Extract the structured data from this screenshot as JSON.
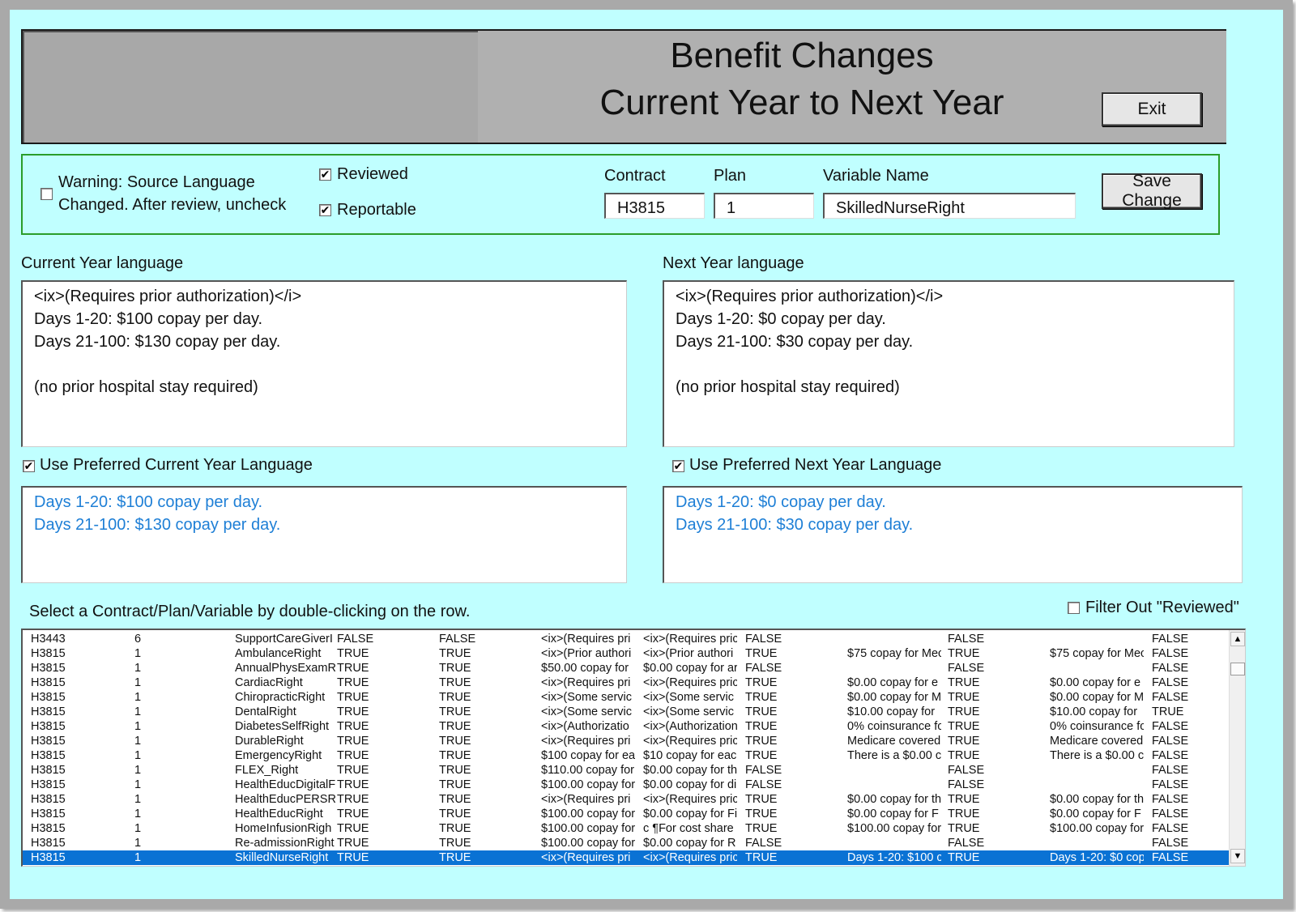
{
  "header": {
    "title_line1": "Benefit Changes",
    "title_line2": "Current Year to Next Year",
    "exit_label": "Exit"
  },
  "controls": {
    "warning_line1": "Warning:  Source Language",
    "warning_line2": "Changed.  After review, uncheck",
    "warning_checked": false,
    "reviewed_label": "Reviewed",
    "reviewed_checked": true,
    "reportable_label": "Reportable",
    "reportable_checked": true,
    "contract_label": "Contract",
    "contract_value": "H3815",
    "plan_label": "Plan",
    "plan_value": "1",
    "variable_label": "Variable Name",
    "variable_value": "SkilledNurseRight",
    "save_label": "Save Change"
  },
  "current_year": {
    "label": "Current Year language",
    "text": "<ix>(Requires prior authorization)</i>\nDays 1-20: $100 copay per day.\nDays 21-100: $130 copay per day.\n\n(no prior hospital stay required)",
    "preferred_label": "Use Preferred Current Year Language",
    "preferred_checked": true,
    "preferred_text": "Days 1-20: $100 copay per day.\nDays 21-100: $130 copay per day."
  },
  "next_year": {
    "label": "Next Year language",
    "text": "<ix>(Requires prior authorization)</i>\nDays 1-20: $0 copay per day.\nDays 21-100: $30 copay per day.\n\n(no prior hospital stay required)",
    "preferred_label": "Use Preferred Next Year Language",
    "preferred_checked": true,
    "preferred_text": "Days 1-20: $0 copay per day.\nDays 21-100: $30 copay per day."
  },
  "list": {
    "instruction": "Select a Contract/Plan/Variable by double-clicking on the row.",
    "filter_label": "Filter Out \"Reviewed\"",
    "filter_checked": false,
    "selected_index": 15,
    "rows": [
      [
        "H3443",
        "6",
        "SupportCareGiverI",
        "FALSE",
        "FALSE",
        "<ix>(Requires pri",
        "<ix>(Requires pric",
        "FALSE",
        "",
        "FALSE",
        "",
        "FALSE"
      ],
      [
        "H3815",
        "1",
        "AmbulanceRight",
        "TRUE",
        "TRUE",
        "<ix>(Prior authori",
        "<ix>(Prior authori",
        "TRUE",
        "$75 copay for Mec",
        "TRUE",
        "$75 copay for Mec",
        "FALSE"
      ],
      [
        "H3815",
        "1",
        "AnnualPhysExamR",
        "TRUE",
        "TRUE",
        "$50.00 copay for",
        "$0.00 copay for ar",
        "FALSE",
        "",
        "FALSE",
        "",
        "FALSE"
      ],
      [
        "H3815",
        "1",
        "CardiacRight",
        "TRUE",
        "TRUE",
        "<ix>(Requires pri",
        "<ix>(Requires pric",
        "TRUE",
        "$0.00 copay for e",
        "TRUE",
        "$0.00 copay for e",
        "FALSE"
      ],
      [
        "H3815",
        "1",
        "ChiropracticRight",
        "TRUE",
        "TRUE",
        "<ix>(Some servic",
        "<ix>(Some servic",
        "TRUE",
        "$0.00 copay for M",
        "TRUE",
        "$0.00 copay for M",
        "FALSE"
      ],
      [
        "H3815",
        "1",
        "DentalRight",
        "TRUE",
        "TRUE",
        "<ix>(Some servic",
        "<ix>(Some servic",
        "TRUE",
        "$10.00 copay for",
        "TRUE",
        "$10.00 copay for",
        "TRUE"
      ],
      [
        "H3815",
        "1",
        "DiabetesSelfRight",
        "TRUE",
        "TRUE",
        "<ix>(Authorizatio",
        "<ix>(Authorization",
        "TRUE",
        "0% coinsurance fc",
        "TRUE",
        "0% coinsurance fc",
        "FALSE"
      ],
      [
        "H3815",
        "1",
        "DurableRight",
        "TRUE",
        "TRUE",
        "<ix>(Requires pri",
        "<ix>(Requires pric",
        "TRUE",
        "Medicare covered",
        "TRUE",
        "Medicare covered",
        "FALSE"
      ],
      [
        "H3815",
        "1",
        "EmergencyRight",
        "TRUE",
        "TRUE",
        "$100 copay for ea",
        "$10 copay for eac",
        "TRUE",
        "There is a $0.00 c",
        "TRUE",
        "There is a $0.00 c",
        "FALSE"
      ],
      [
        "H3815",
        "1",
        "FLEX_Right",
        "TRUE",
        "TRUE",
        "$110.00 copay for",
        "$0.00 copay for th",
        "FALSE",
        "",
        "FALSE",
        "",
        "FALSE"
      ],
      [
        "H3815",
        "1",
        "HealthEducDigitalF",
        "TRUE",
        "TRUE",
        "$100.00 copay for",
        "$0.00 copay for di",
        "FALSE",
        "",
        "FALSE",
        "",
        "FALSE"
      ],
      [
        "H3815",
        "1",
        "HealthEducPERSRi",
        "TRUE",
        "TRUE",
        "<ix>(Requires pri",
        "<ix>(Requires pric",
        "TRUE",
        "$0.00 copay for th",
        "TRUE",
        "$0.00 copay for th",
        "FALSE"
      ],
      [
        "H3815",
        "1",
        "HealthEducRight",
        "TRUE",
        "TRUE",
        "$100.00 copay for",
        "$0.00 copay for Fi",
        "TRUE",
        "$0.00 copay for F",
        "TRUE",
        "$0.00 copay for F",
        "FALSE"
      ],
      [
        "H3815",
        "1",
        "HomeInfusionRigh",
        "TRUE",
        "TRUE",
        "$100.00 copay for",
        "c ¶For cost share a",
        "TRUE",
        "$100.00 copay for",
        "TRUE",
        "$100.00 copay for",
        "FALSE"
      ],
      [
        "H3815",
        "1",
        "Re-admissionRight",
        "TRUE",
        "TRUE",
        "$100.00 copay for",
        "$0.00 copay for R",
        "FALSE",
        "",
        "FALSE",
        "",
        "FALSE"
      ],
      [
        "H3815",
        "1",
        "SkilledNurseRight",
        "TRUE",
        "TRUE",
        "<ix>(Requires pri",
        "<ix>(Requires pric",
        "TRUE",
        "Days 1-20: $100 c",
        "TRUE",
        "Days 1-20: $0 cop",
        "FALSE"
      ]
    ]
  }
}
